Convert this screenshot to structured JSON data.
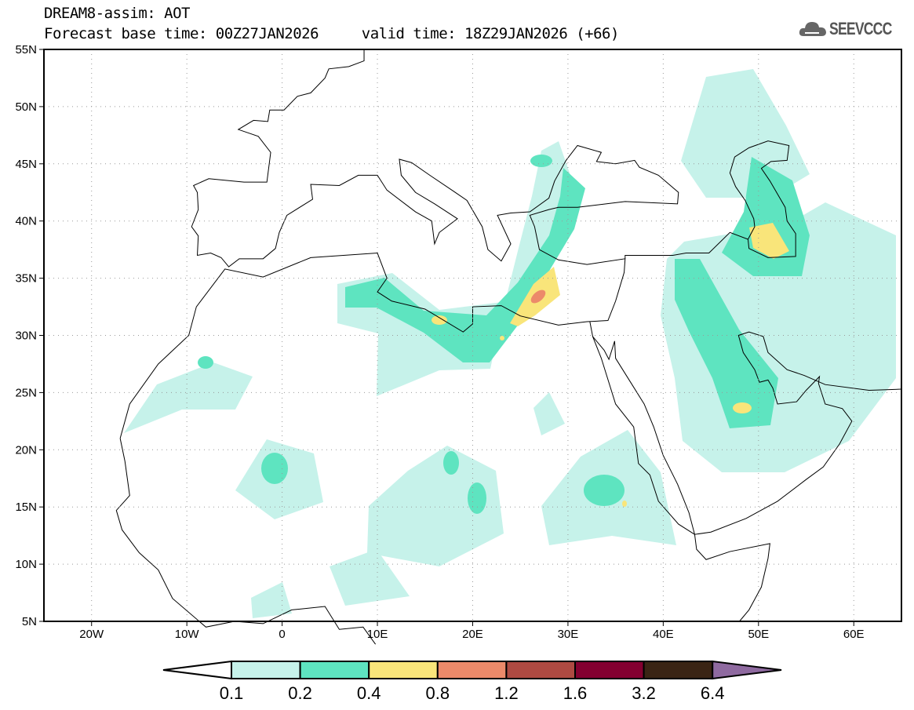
{
  "header": {
    "title": "DREAM8-assim: AOT",
    "base_time": "Forecast base time: 00Z27JAN2026",
    "valid_time": "valid time: 18Z29JAN2026 (+66)"
  },
  "logo": {
    "text": "SEEVCCC"
  },
  "map": {
    "lat_labels": [
      "55N",
      "50N",
      "45N",
      "40N",
      "35N",
      "30N",
      "25N",
      "20N",
      "15N",
      "10N",
      "5N"
    ],
    "lon_labels": [
      "20W",
      "10W",
      "0",
      "10E",
      "20E",
      "30E",
      "40E",
      "50E",
      "60E"
    ]
  },
  "colorbar": {
    "labels": [
      "0.1",
      "0.2",
      "0.4",
      "0.8",
      "1.2",
      "1.6",
      "3.2",
      "6.4"
    ],
    "colors": [
      "#c6f2ea",
      "#5ee4c0",
      "#f9e57a",
      "#ec8a6a",
      "#ae4a42",
      "#830030",
      "#3a2414",
      "#8f6aa0"
    ]
  }
}
